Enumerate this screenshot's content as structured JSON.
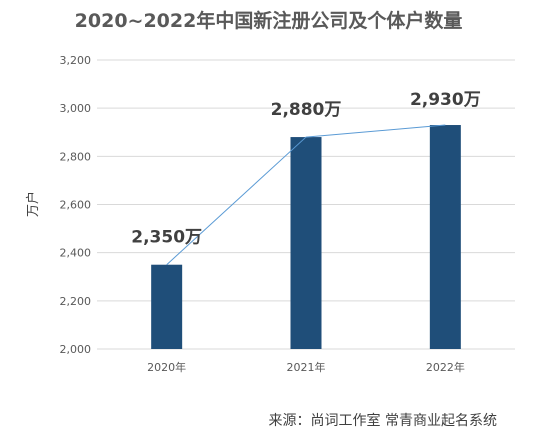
{
  "chart_data": {
    "type": "bar",
    "title": "2020~2022年中国新注册公司及个体户数量",
    "ylabel": "万户",
    "xlabel": "",
    "categories": [
      "2020年",
      "2021年",
      "2022年"
    ],
    "series": [
      {
        "values": [
          2350,
          2880,
          2930
        ],
        "color": "#1f4e79"
      }
    ],
    "data_labels": [
      "2,350万",
      "2,880万",
      "2,930万"
    ],
    "trendline": {
      "color": "#5b9bd5",
      "values": [
        2350,
        2880,
        2930
      ]
    },
    "ylim": [
      2000,
      3200
    ],
    "yticks": [
      2000,
      2200,
      2400,
      2600,
      2800,
      3000,
      3200
    ],
    "ytick_labels": [
      "2,000",
      "2,200",
      "2,400",
      "2,600",
      "2,800",
      "3,000",
      "3,200"
    ],
    "grid": true,
    "legend": "none"
  },
  "footer": {
    "source": "来源：尚词工作室 常青商业起名系统"
  },
  "colors": {
    "bar": "#1f4e79",
    "trend": "#5b9bd5",
    "grid": "#d9d9d9",
    "text": "#595959"
  }
}
